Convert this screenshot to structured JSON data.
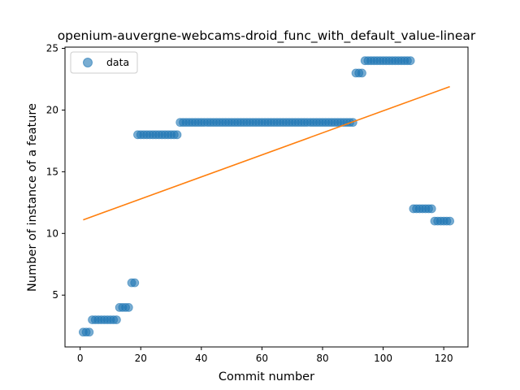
{
  "chart_data": {
    "type": "scatter",
    "title": "openium-auvergne-webcams-droid_func_with_default_value-linear",
    "xlabel": "Commit number",
    "ylabel": "Number of instance of a feature",
    "xlim": [
      -5,
      128
    ],
    "ylim": [
      0.8,
      25.1
    ],
    "x_ticks": [
      0,
      20,
      40,
      60,
      80,
      100,
      120
    ],
    "y_ticks": [
      5,
      10,
      15,
      20,
      25
    ],
    "grid": false,
    "legend_position": "top-left",
    "colors": {
      "data": "#1f77b4",
      "fit": "#ff7f0e"
    },
    "series": [
      {
        "name": "data",
        "kind": "scatter",
        "x": [
          1,
          2,
          3,
          4,
          5,
          6,
          7,
          8,
          9,
          10,
          11,
          12,
          13,
          14,
          15,
          16,
          17,
          18,
          19,
          20,
          21,
          22,
          23,
          24,
          25,
          26,
          27,
          28,
          29,
          30,
          31,
          32,
          33,
          34,
          35,
          36,
          37,
          38,
          39,
          40,
          41,
          42,
          43,
          44,
          45,
          46,
          47,
          48,
          49,
          50,
          51,
          52,
          53,
          54,
          55,
          56,
          57,
          58,
          59,
          60,
          61,
          62,
          63,
          64,
          65,
          66,
          67,
          68,
          69,
          70,
          71,
          72,
          73,
          74,
          75,
          76,
          77,
          78,
          79,
          80,
          81,
          82,
          83,
          84,
          85,
          86,
          87,
          88,
          89,
          90,
          91,
          92,
          93,
          94,
          95,
          96,
          97,
          98,
          99,
          100,
          101,
          102,
          103,
          104,
          105,
          106,
          107,
          108,
          109,
          110,
          111,
          112,
          113,
          114,
          115,
          116,
          117,
          118,
          119,
          120,
          121,
          122
        ],
        "y": [
          2,
          2,
          2,
          3,
          3,
          3,
          3,
          3,
          3,
          3,
          3,
          3,
          4,
          4,
          4,
          4,
          6,
          6,
          18,
          18,
          18,
          18,
          18,
          18,
          18,
          18,
          18,
          18,
          18,
          18,
          18,
          18,
          19,
          19,
          19,
          19,
          19,
          19,
          19,
          19,
          19,
          19,
          19,
          19,
          19,
          19,
          19,
          19,
          19,
          19,
          19,
          19,
          19,
          19,
          19,
          19,
          19,
          19,
          19,
          19,
          19,
          19,
          19,
          19,
          19,
          19,
          19,
          19,
          19,
          19,
          19,
          19,
          19,
          19,
          19,
          19,
          19,
          19,
          19,
          19,
          19,
          19,
          19,
          19,
          19,
          19,
          19,
          19,
          19,
          19,
          23,
          23,
          23,
          24,
          24,
          24,
          24,
          24,
          24,
          24,
          24,
          24,
          24,
          24,
          24,
          24,
          24,
          24,
          24,
          12,
          12,
          12,
          12,
          12,
          12,
          12,
          11,
          11,
          11,
          11,
          11,
          11
        ]
      },
      {
        "name": "",
        "kind": "line",
        "x": [
          1,
          122
        ],
        "y": [
          11.1,
          21.9
        ]
      }
    ]
  }
}
